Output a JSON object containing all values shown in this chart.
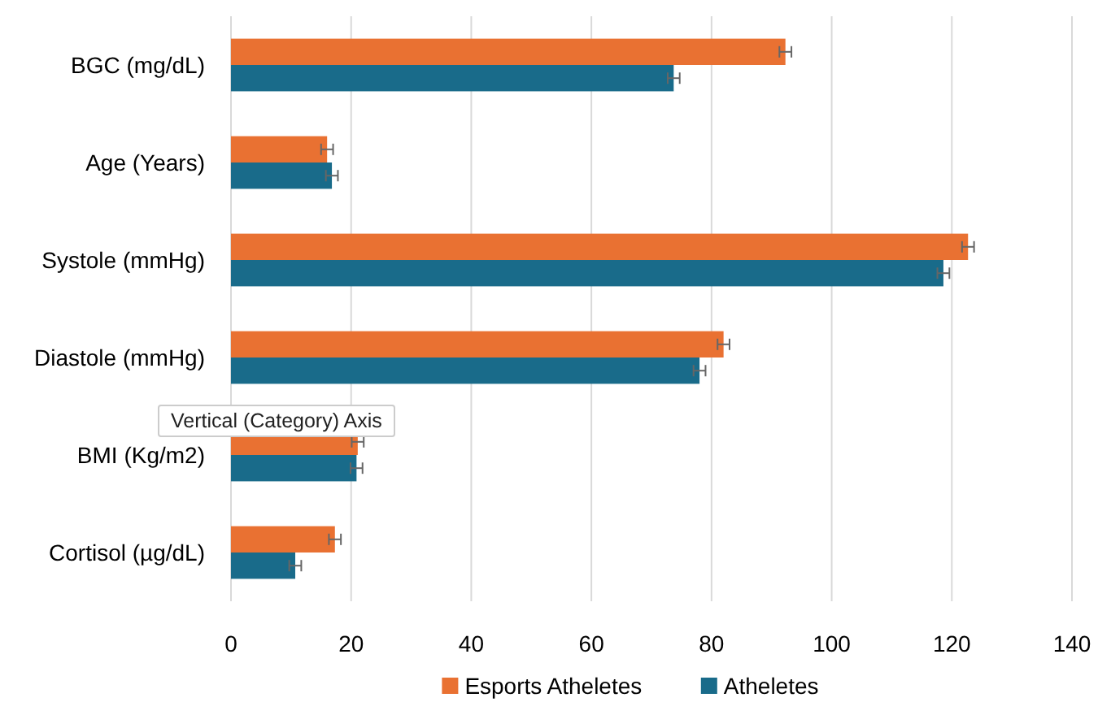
{
  "chart_data": {
    "type": "bar",
    "orientation": "horizontal",
    "categories": [
      "BGC (mg/dL)",
      "Age (Years)",
      "Systole (mmHg)",
      "Diastole (mmHg)",
      "BMI (Kg/m2)",
      "Cortisol  (µg/dL)"
    ],
    "series": [
      {
        "name": "Esports Atheletes",
        "color": "#e97132",
        "values": [
          92.3,
          16,
          122.7,
          82,
          21.1,
          17.3
        ],
        "errors": [
          1,
          1,
          1,
          1,
          1,
          1
        ]
      },
      {
        "name": "Atheletes",
        "color": "#196b8a",
        "values": [
          73.7,
          16.8,
          118.6,
          78,
          20.9,
          10.7
        ],
        "errors": [
          1,
          1,
          1,
          1,
          1,
          1
        ]
      }
    ],
    "xlim": [
      0,
      140
    ],
    "xticks": [
      0,
      20,
      40,
      60,
      80,
      100,
      120,
      140
    ],
    "grid": "x",
    "legend": "bottom",
    "annotations": [
      "Vertical (Category) Axis"
    ]
  }
}
